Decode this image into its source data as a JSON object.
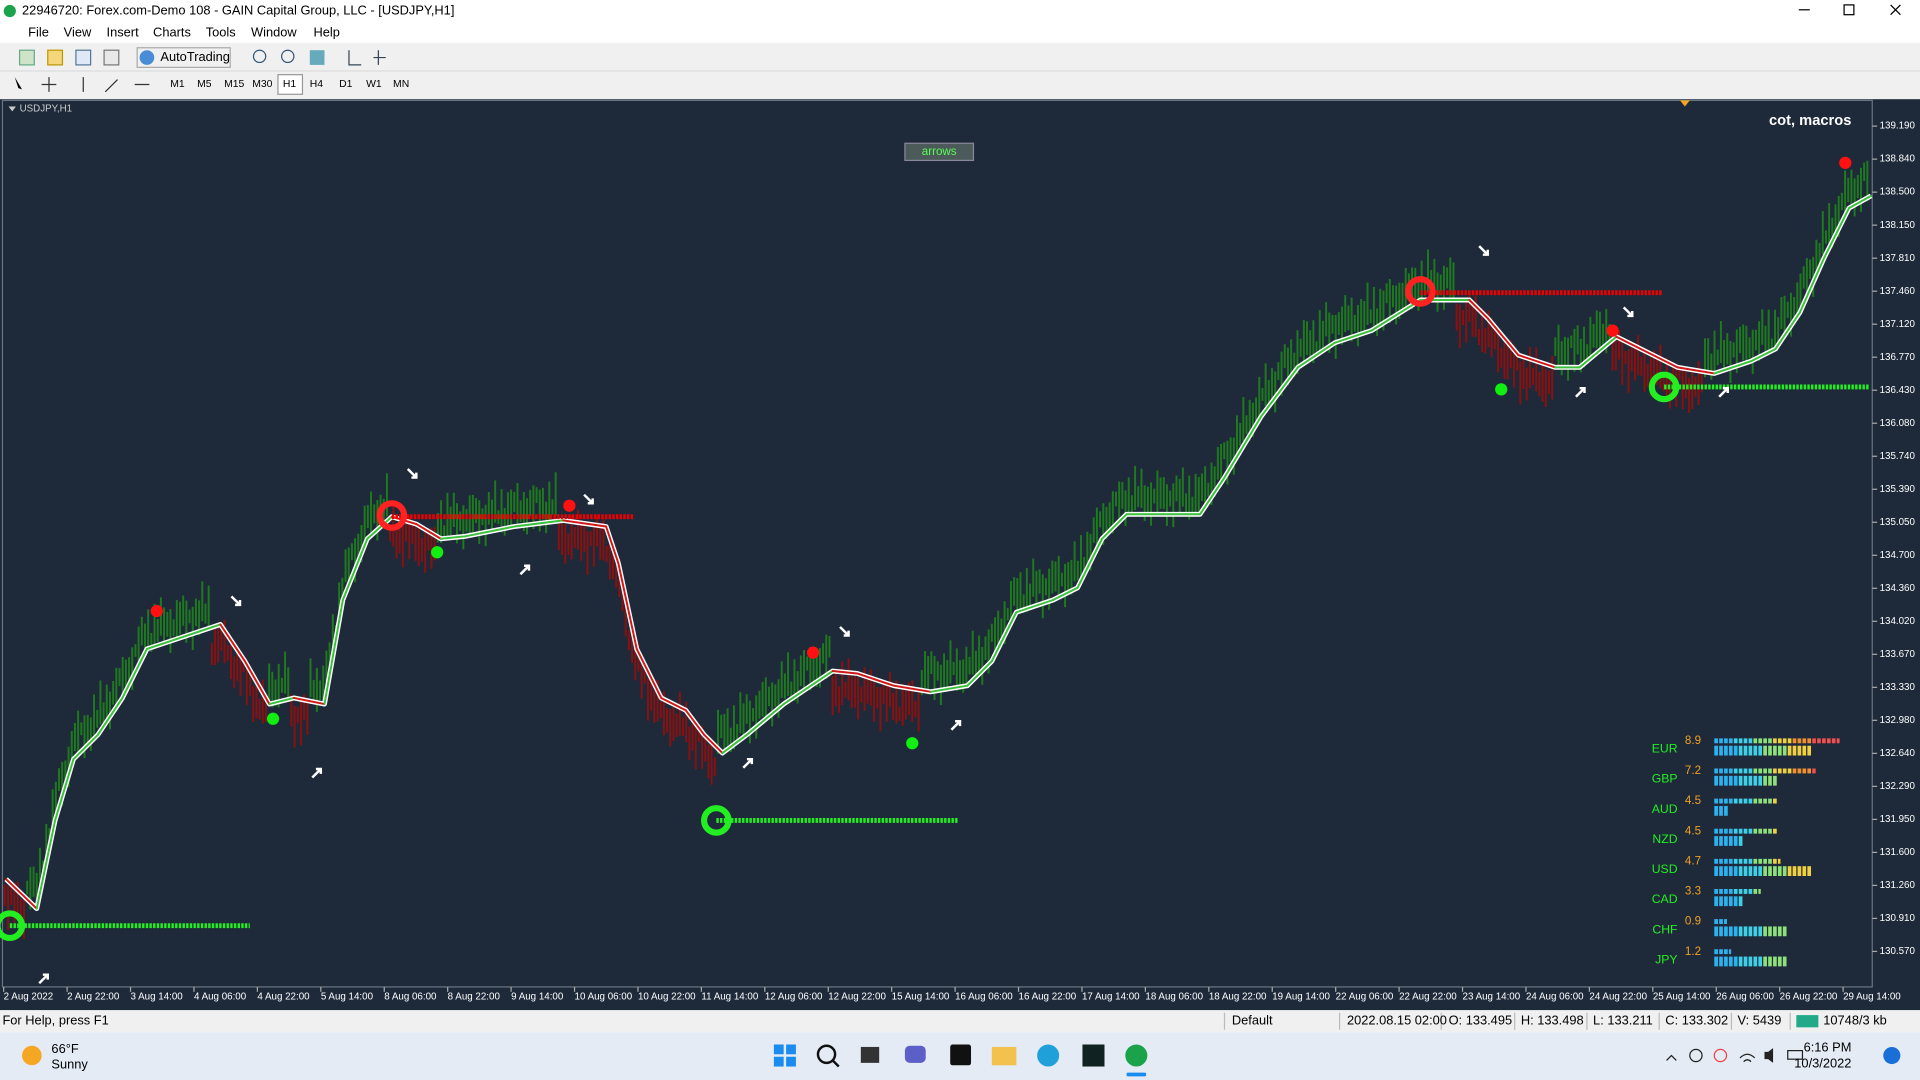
{
  "window": {
    "title": "22946720: Forex.com-Demo 108 - GAIN Capital Group, LLC - [USDJPY,H1]"
  },
  "menu": [
    "File",
    "View",
    "Insert",
    "Charts",
    "Tools",
    "Window",
    "Help"
  ],
  "toolbar": {
    "autotrading": "AutoTrading",
    "timeframes": [
      "M1",
      "M5",
      "M15",
      "M30",
      "H1",
      "H4",
      "D1",
      "W1",
      "MN"
    ]
  },
  "chart": {
    "symbol": "USDJPY,H1",
    "button": "arrows",
    "indicator_title": "cot, macros",
    "price_axis": [
      "139.190",
      "138.840",
      "138.500",
      "138.150",
      "137.810",
      "137.460",
      "137.120",
      "136.770",
      "136.430",
      "136.080",
      "135.740",
      "135.390",
      "135.050",
      "134.700",
      "134.360",
      "134.020",
      "133.670",
      "133.330",
      "132.980",
      "132.640",
      "132.290",
      "131.950",
      "131.600",
      "131.260",
      "130.910",
      "130.570"
    ],
    "time_axis": [
      "2 Aug 2022",
      "2 Aug 22:00",
      "3 Aug 14:00",
      "4 Aug 06:00",
      "4 Aug 22:00",
      "5 Aug 14:00",
      "8 Aug 06:00",
      "8 Aug 22:00",
      "9 Aug 14:00",
      "10 Aug 06:00",
      "10 Aug 22:00",
      "11 Aug 14:00",
      "12 Aug 06:00",
      "12 Aug 22:00",
      "15 Aug 14:00",
      "16 Aug 06:00",
      "16 Aug 22:00",
      "17 Aug 14:00",
      "18 Aug 06:00",
      "18 Aug 22:00",
      "19 Aug 14:00",
      "22 Aug 06:00",
      "22 Aug 22:00",
      "23 Aug 14:00",
      "24 Aug 06:00",
      "24 Aug 22:00",
      "25 Aug 14:00",
      "26 Aug 06:00",
      "26 Aug 22:00",
      "29 Aug 14:00"
    ],
    "strength": [
      {
        "currency": "EUR",
        "value": 8.9
      },
      {
        "currency": "GBP",
        "value": 7.2
      },
      {
        "currency": "AUD",
        "value": 4.5
      },
      {
        "currency": "NZD",
        "value": 4.5
      },
      {
        "currency": "USD",
        "value": 4.7
      },
      {
        "currency": "CAD",
        "value": 3.3
      },
      {
        "currency": "CHF",
        "value": 0.9
      },
      {
        "currency": "JPY",
        "value": 1.2
      }
    ]
  },
  "status_bar": {
    "help": "For Help, press F1",
    "profile": "Default",
    "time": "2022.08.15 02:00",
    "open": "O: 133.495",
    "high": "H: 133.498",
    "low": "L: 133.211",
    "close": "C: 133.302",
    "volume": "V: 5439",
    "traffic": "10748/3 kb"
  },
  "taskbar": {
    "temperature": "66°F",
    "weather": "Sunny",
    "time": "6:16 PM",
    "date": "10/3/2022"
  }
}
